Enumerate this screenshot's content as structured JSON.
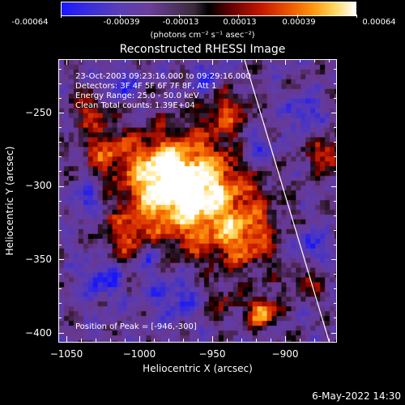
{
  "colorbar": {
    "ticks": [
      "-0.00064",
      "-0.00039",
      "-0.00013",
      "0.00013",
      "0.00039",
      "0.00064"
    ],
    "units": "(photons cm⁻² s⁻¹ asec⁻²)"
  },
  "title": "Reconstructed RHESSI Image",
  "annotations": {
    "time": "23-Oct-2003 09:23:16.000  to 09:29:16.000",
    "detectors": "Detectors: 3F 4F 5F 6F 7F 8F, Att 1",
    "energy": "Energy Range: 25.0 - 50.0 keV",
    "method": "Clean     Total counts: 1.39E+04",
    "peak": "Position of Peak = [-946,-300]"
  },
  "axes": {
    "xlabel": "Heliocentric X (arcsec)",
    "ylabel": "Heliocentric Y (arcsec)",
    "xticks": [
      "−1050",
      "−1000",
      "−950",
      "−900"
    ],
    "yticks": [
      "−250",
      "−300",
      "−350",
      "−400"
    ],
    "xlim": [
      -1055,
      -863
    ],
    "ylim": [
      -405,
      -210
    ]
  },
  "datestamp": "6-May-2022 14:30"
}
